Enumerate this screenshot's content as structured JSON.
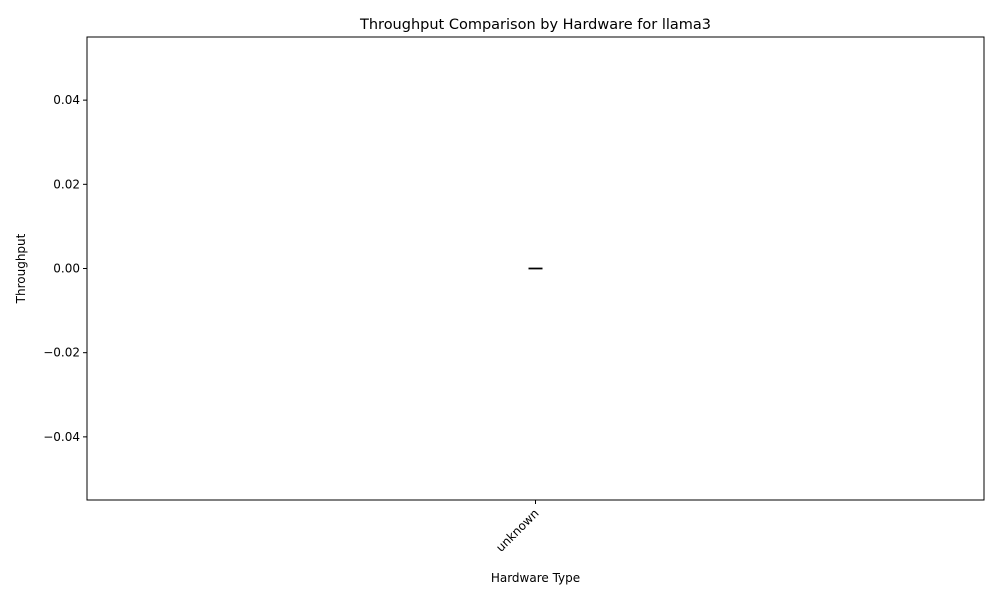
{
  "chart_data": {
    "type": "bar",
    "title": "Throughput Comparison by Hardware for llama3",
    "xlabel": "Hardware Type",
    "ylabel": "Throughput",
    "categories": [
      "unknown"
    ],
    "values": [
      0.0
    ],
    "error_bars": [
      0.0
    ],
    "ylim": [
      -0.055,
      0.055
    ],
    "yticks": [
      -0.04,
      -0.02,
      0.0,
      0.02,
      0.04
    ],
    "ytick_labels": [
      "−0.04",
      "−0.02",
      "0.00",
      "0.02",
      "0.04"
    ],
    "xtick_rotation_deg": 45,
    "grid": false,
    "legend": false,
    "colors": {
      "axis": "#000000",
      "background": "#ffffff"
    }
  }
}
